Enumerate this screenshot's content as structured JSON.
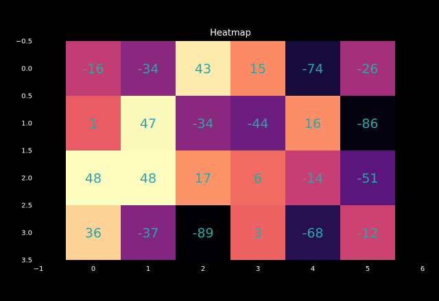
{
  "chart_data": {
    "type": "heatmap",
    "title": "Heatmap",
    "xlabel": "",
    "ylabel": "",
    "colormap": "magma",
    "value_range": [
      -89,
      48
    ],
    "xlim": [
      -1,
      6
    ],
    "ylim": [
      3.5,
      -0.5
    ],
    "x_ticks": [
      "−1",
      "0",
      "1",
      "2",
      "3",
      "4",
      "5",
      "6"
    ],
    "y_ticks": [
      "−0.5",
      "0.0",
      "0.5",
      "1.0",
      "1.5",
      "2.0",
      "2.5",
      "3.0",
      "3.5"
    ],
    "grid": false,
    "values": [
      [
        -16,
        -34,
        43,
        15,
        -74,
        -26
      ],
      [
        1,
        47,
        -34,
        -44,
        16,
        -86
      ],
      [
        48,
        48,
        17,
        6,
        -14,
        -51
      ],
      [
        36,
        -37,
        -89,
        3,
        -68,
        -12
      ]
    ],
    "cell_labels": [
      [
        "-16",
        "-34",
        "43",
        "15",
        "-74",
        "-26"
      ],
      [
        "1",
        "47",
        "-34",
        "-44",
        "16",
        "-86"
      ],
      [
        "48",
        "48",
        "17",
        "6",
        "-14",
        "-51"
      ],
      [
        "36",
        "-37",
        "-89",
        "3",
        "-68",
        "-12"
      ]
    ],
    "label_color": "#2aa6a8",
    "background_color": "#000000"
  }
}
